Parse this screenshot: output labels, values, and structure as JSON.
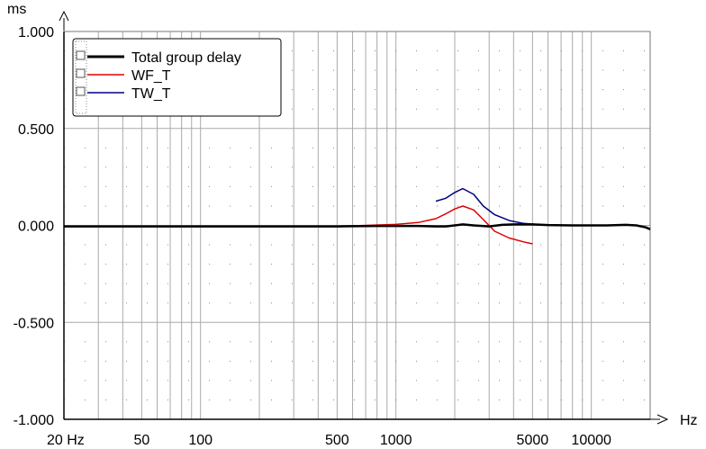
{
  "chart_data": {
    "type": "line",
    "title": "",
    "xlabel": "Hz",
    "ylabel": "ms",
    "x_scale": "log",
    "xlim": [
      20,
      20000
    ],
    "ylim": [
      -1.0,
      1.0
    ],
    "grid": true,
    "legend_position": "top-left",
    "x_ticks": [
      {
        "value": 20,
        "label": "20 Hz"
      },
      {
        "value": 50,
        "label": "50"
      },
      {
        "value": 100,
        "label": "100"
      },
      {
        "value": 500,
        "label": "500"
      },
      {
        "value": 1000,
        "label": "1000"
      },
      {
        "value": 5000,
        "label": "5000"
      },
      {
        "value": 10000,
        "label": "10000"
      }
    ],
    "y_ticks": [
      {
        "value": 1.0,
        "label": "1.000"
      },
      {
        "value": 0.5,
        "label": "0.500"
      },
      {
        "value": 0.0,
        "label": "0.000"
      },
      {
        "value": -0.5,
        "label": "-0.500"
      },
      {
        "value": -1.0,
        "label": "-1.000"
      }
    ],
    "series": [
      {
        "name": "Total group delay",
        "color": "#000000",
        "x": [
          20,
          30,
          50,
          100,
          200,
          500,
          800,
          1000,
          1300,
          1600,
          1800,
          2000,
          2200,
          2500,
          3000,
          3500,
          4000,
          5000,
          6000,
          8000,
          10000,
          12000,
          15000,
          17000,
          19000,
          20000
        ],
        "y": [
          -0.005,
          -0.005,
          -0.005,
          -0.005,
          -0.005,
          -0.005,
          -0.003,
          -0.003,
          -0.003,
          -0.005,
          -0.005,
          0.0,
          0.005,
          0.0,
          -0.005,
          0.003,
          0.005,
          0.005,
          0.002,
          0.0,
          0.0,
          0.0,
          0.003,
          0.0,
          -0.01,
          -0.02
        ]
      },
      {
        "name": "WF_T",
        "color": "#dd0000",
        "x": [
          500,
          700,
          1000,
          1300,
          1600,
          1800,
          2000,
          2200,
          2500,
          2800,
          3200,
          3800,
          4500,
          5000
        ],
        "y": [
          -0.005,
          0.0,
          0.005,
          0.015,
          0.035,
          0.06,
          0.085,
          0.1,
          0.08,
          0.03,
          -0.03,
          -0.065,
          -0.085,
          -0.095
        ]
      },
      {
        "name": "TW_T",
        "color": "#000080",
        "x": [
          1600,
          1800,
          2000,
          2200,
          2500,
          2800,
          3200,
          3800,
          4500,
          5200
        ],
        "y": [
          0.125,
          0.14,
          0.17,
          0.19,
          0.16,
          0.1,
          0.055,
          0.025,
          0.01,
          0.005
        ]
      }
    ]
  }
}
